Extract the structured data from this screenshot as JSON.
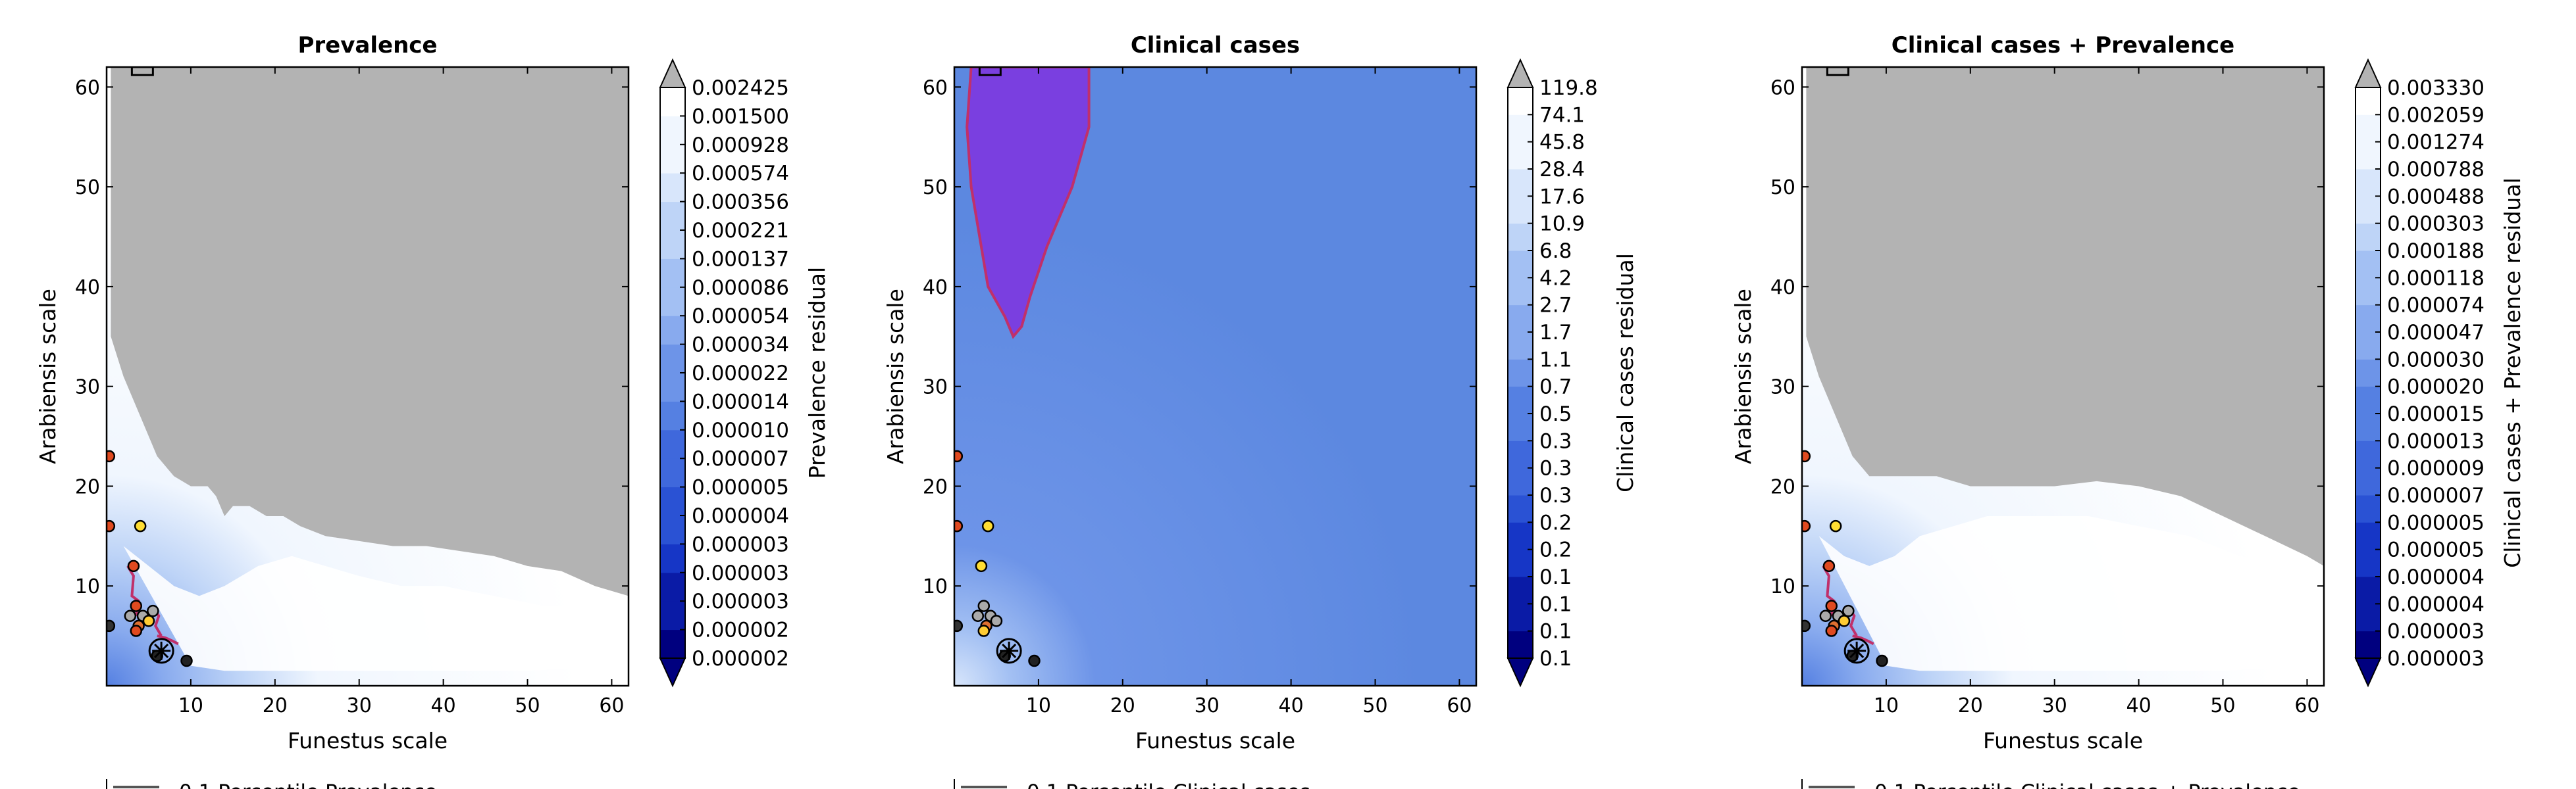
{
  "chart_data": [
    {
      "type": "heatmap",
      "title": "Prevalence",
      "xlabel": "Funestus scale",
      "ylabel": "Arabiensis scale",
      "xlim": [
        0,
        62
      ],
      "ylim": [
        0,
        62
      ],
      "x_ticks": [
        "10",
        "20",
        "30",
        "40",
        "50",
        "60"
      ],
      "y_ticks": [
        "10",
        "20",
        "30",
        "40",
        "50",
        "60"
      ],
      "colorbar_label": "Prevalence residual",
      "colorbar_ticks": [
        "0.002425",
        "0.001500",
        "0.000928",
        "0.000574",
        "0.000356",
        "0.000221",
        "0.000137",
        "0.000086",
        "0.000054",
        "0.000034",
        "0.000022",
        "0.000014",
        "0.000010",
        "0.000007",
        "0.000005",
        "0.000004",
        "0.000003",
        "0.000003",
        "0.000003",
        "0.000002",
        "0.000002"
      ],
      "legend_partial": "0.1 Percentile Prevalence",
      "grey_region_boundary": [
        [
          0.5,
          62
        ],
        [
          0.5,
          35
        ],
        [
          2,
          31
        ],
        [
          4,
          27
        ],
        [
          6,
          23
        ],
        [
          8,
          21
        ],
        [
          10,
          20
        ],
        [
          12,
          20
        ],
        [
          13,
          19
        ],
        [
          14,
          17
        ],
        [
          15,
          18
        ],
        [
          17,
          18
        ],
        [
          19,
          17
        ],
        [
          21,
          17
        ],
        [
          23,
          16
        ],
        [
          26,
          15
        ],
        [
          30,
          14.5
        ],
        [
          34,
          14
        ],
        [
          38,
          14
        ],
        [
          42,
          13.5
        ],
        [
          46,
          13
        ],
        [
          50,
          12
        ],
        [
          54,
          11.5
        ],
        [
          58,
          10
        ],
        [
          62,
          9
        ],
        [
          62,
          62
        ]
      ],
      "white_region_boundary": [
        [
          2,
          14
        ],
        [
          5,
          12
        ],
        [
          8,
          10
        ],
        [
          11,
          9
        ],
        [
          14,
          10
        ],
        [
          18,
          12
        ],
        [
          22,
          13
        ],
        [
          26,
          12
        ],
        [
          30,
          11
        ],
        [
          35,
          10
        ],
        [
          40,
          10
        ],
        [
          46,
          9
        ],
        [
          52,
          8
        ],
        [
          58,
          8
        ],
        [
          62,
          7
        ],
        [
          62,
          2
        ],
        [
          50,
          1.5
        ],
        [
          40,
          1.5
        ],
        [
          30,
          1.5
        ],
        [
          20,
          1.5
        ],
        [
          14,
          1.5
        ],
        [
          10,
          2
        ]
      ],
      "percentile_contours": [
        [
          [
            2.5,
            12
          ],
          [
            3.2,
            11
          ],
          [
            3,
            9
          ],
          [
            3.8,
            8.5
          ],
          [
            3.5,
            7
          ]
        ],
        [
          [
            5.5,
            8
          ],
          [
            6.2,
            7
          ],
          [
            5.8,
            6
          ],
          [
            6.5,
            5
          ]
        ],
        [
          [
            6,
            5
          ],
          [
            7,
            4.8
          ],
          [
            7.8,
            4.5
          ],
          [
            8.5,
            4.2
          ]
        ]
      ],
      "markers": [
        {
          "x": 0.3,
          "y": 23,
          "color": "#e04a20"
        },
        {
          "x": 0.3,
          "y": 16,
          "color": "#e04a20"
        },
        {
          "x": 0.3,
          "y": 6,
          "color": "#333333"
        },
        {
          "x": 4,
          "y": 16,
          "color": "#ffdd33"
        },
        {
          "x": 3.2,
          "y": 12,
          "color": "#e04a20"
        },
        {
          "x": 2.8,
          "y": 7,
          "color": "#aaaaaa"
        },
        {
          "x": 3.5,
          "y": 8,
          "color": "#e04a20"
        },
        {
          "x": 4.3,
          "y": 7,
          "color": "#aaaaaa"
        },
        {
          "x": 3.8,
          "y": 6,
          "color": "#e07030"
        },
        {
          "x": 5,
          "y": 6.5,
          "color": "#ffcc33"
        },
        {
          "x": 3.5,
          "y": 5.5,
          "color": "#e04a20"
        },
        {
          "x": 5.5,
          "y": 7.5,
          "color": "#aaaaaa"
        },
        {
          "x": 6,
          "y": 3,
          "color": "#222222"
        },
        {
          "x": 9.5,
          "y": 2.5,
          "color": "#222222"
        }
      ],
      "best_marker": {
        "x": 6.5,
        "y": 3.5
      },
      "frame_box": {
        "x0": 3,
        "x1": 5.5,
        "y0": 61.2,
        "y1": 62
      }
    },
    {
      "type": "heatmap",
      "title": "Clinical cases",
      "xlabel": "Funestus scale",
      "ylabel": "Arabiensis scale",
      "xlim": [
        0,
        62
      ],
      "ylim": [
        0,
        62
      ],
      "x_ticks": [
        "10",
        "20",
        "30",
        "40",
        "50",
        "60"
      ],
      "y_ticks": [
        "10",
        "20",
        "30",
        "40",
        "50",
        "60"
      ],
      "colorbar_label": "Clinical cases residual",
      "colorbar_ticks": [
        "119.8",
        "74.1",
        "45.8",
        "28.4",
        "17.6",
        "10.9",
        "6.8",
        "4.2",
        "2.7",
        "1.7",
        "1.1",
        "0.7",
        "0.5",
        "0.3",
        "0.3",
        "0.3",
        "0.2",
        "0.2",
        "0.1",
        "0.1",
        "0.1",
        "0.1"
      ],
      "legend_partial": "0.1 Percentile Clinical cases",
      "purple_region_boundary": [
        [
          2,
          62
        ],
        [
          16,
          62
        ],
        [
          16,
          56
        ],
        [
          14,
          50
        ],
        [
          11,
          44
        ],
        [
          9,
          39
        ],
        [
          8,
          36
        ],
        [
          7,
          35
        ],
        [
          6,
          37
        ],
        [
          4,
          40
        ],
        [
          3,
          45
        ],
        [
          2,
          50
        ],
        [
          1.5,
          56
        ]
      ],
      "percentile_contours": [
        [
          [
            2,
            62
          ],
          [
            16,
            62
          ],
          [
            16,
            56
          ],
          [
            14,
            50
          ],
          [
            11,
            44
          ],
          [
            9,
            39
          ],
          [
            8,
            36
          ],
          [
            7,
            35
          ],
          [
            6,
            37
          ],
          [
            4,
            40
          ],
          [
            3,
            45
          ],
          [
            2,
            50
          ],
          [
            1.5,
            56
          ],
          [
            2,
            62
          ]
        ]
      ],
      "markers": [
        {
          "x": 0.3,
          "y": 23,
          "color": "#e04a20"
        },
        {
          "x": 0.3,
          "y": 16,
          "color": "#e04a20"
        },
        {
          "x": 0.3,
          "y": 6,
          "color": "#333333"
        },
        {
          "x": 4,
          "y": 16,
          "color": "#ffdd33"
        },
        {
          "x": 3.2,
          "y": 12,
          "color": "#ffdd33"
        },
        {
          "x": 2.8,
          "y": 7,
          "color": "#aaaaaa"
        },
        {
          "x": 3.5,
          "y": 8,
          "color": "#aaaaaa"
        },
        {
          "x": 4.3,
          "y": 7,
          "color": "#aaaaaa"
        },
        {
          "x": 3.8,
          "y": 6,
          "color": "#e07030"
        },
        {
          "x": 5,
          "y": 6.5,
          "color": "#aaaaaa"
        },
        {
          "x": 3.5,
          "y": 5.5,
          "color": "#ffcc33"
        },
        {
          "x": 6,
          "y": 3,
          "color": "#222222"
        },
        {
          "x": 9.5,
          "y": 2.5,
          "color": "#222222"
        }
      ],
      "best_marker": {
        "x": 6.5,
        "y": 3.5
      },
      "frame_box": {
        "x0": 3,
        "x1": 5.5,
        "y0": 61.2,
        "y1": 62
      }
    },
    {
      "type": "heatmap",
      "title": "Clinical cases + Prevalence",
      "xlabel": "Funestus scale",
      "ylabel": "Arabiensis scale",
      "xlim": [
        0,
        62
      ],
      "ylim": [
        0,
        62
      ],
      "x_ticks": [
        "10",
        "20",
        "30",
        "40",
        "50",
        "60"
      ],
      "y_ticks": [
        "10",
        "20",
        "30",
        "40",
        "50",
        "60"
      ],
      "colorbar_label": "Clinical cases + Prevalence residual",
      "colorbar_ticks": [
        "0.003330",
        "0.002059",
        "0.001274",
        "0.000788",
        "0.000488",
        "0.000303",
        "0.000188",
        "0.000118",
        "0.000074",
        "0.000047",
        "0.000030",
        "0.000020",
        "0.000015",
        "0.000013",
        "0.000009",
        "0.000007",
        "0.000005",
        "0.000005",
        "0.000004",
        "0.000004",
        "0.000003",
        "0.000003"
      ],
      "legend_partial": "0.1 Percentile Clinical cases + Prevalence",
      "grey_region_boundary": [
        [
          0.5,
          62
        ],
        [
          0.5,
          35
        ],
        [
          2,
          31
        ],
        [
          4,
          27
        ],
        [
          6,
          23
        ],
        [
          8,
          21
        ],
        [
          10,
          21
        ],
        [
          13,
          21
        ],
        [
          16,
          21
        ],
        [
          20,
          20
        ],
        [
          25,
          20
        ],
        [
          30,
          20
        ],
        [
          35,
          20.5
        ],
        [
          40,
          20
        ],
        [
          45,
          19
        ],
        [
          50,
          17
        ],
        [
          55,
          15
        ],
        [
          60,
          13
        ],
        [
          62,
          12
        ],
        [
          62,
          62
        ]
      ],
      "white_region_boundary": [
        [
          2,
          15
        ],
        [
          5,
          13
        ],
        [
          8,
          12
        ],
        [
          11,
          13
        ],
        [
          14,
          15
        ],
        [
          18,
          16
        ],
        [
          22,
          17
        ],
        [
          28,
          17
        ],
        [
          34,
          17
        ],
        [
          40,
          16
        ],
        [
          46,
          15
        ],
        [
          52,
          13
        ],
        [
          58,
          12
        ],
        [
          62,
          11
        ],
        [
          62,
          2
        ],
        [
          50,
          1.5
        ],
        [
          40,
          1.5
        ],
        [
          30,
          1.5
        ],
        [
          20,
          1.5
        ],
        [
          14,
          1.5
        ],
        [
          10,
          2
        ]
      ],
      "percentile_contours": [
        [
          [
            2.5,
            12
          ],
          [
            3.2,
            11
          ],
          [
            3,
            9
          ],
          [
            3.8,
            8.5
          ],
          [
            3.5,
            7
          ]
        ],
        [
          [
            5.5,
            8
          ],
          [
            6.2,
            7
          ],
          [
            5.8,
            6
          ],
          [
            6.5,
            5
          ]
        ],
        [
          [
            6,
            5
          ],
          [
            7,
            4.8
          ],
          [
            7.8,
            4.5
          ],
          [
            8.5,
            4.2
          ]
        ]
      ],
      "markers": [
        {
          "x": 0.3,
          "y": 23,
          "color": "#e04a20"
        },
        {
          "x": 0.3,
          "y": 16,
          "color": "#e04a20"
        },
        {
          "x": 0.3,
          "y": 6,
          "color": "#333333"
        },
        {
          "x": 4,
          "y": 16,
          "color": "#ffdd33"
        },
        {
          "x": 3.2,
          "y": 12,
          "color": "#e04a20"
        },
        {
          "x": 2.8,
          "y": 7,
          "color": "#aaaaaa"
        },
        {
          "x": 3.5,
          "y": 8,
          "color": "#e04a20"
        },
        {
          "x": 4.3,
          "y": 7,
          "color": "#aaaaaa"
        },
        {
          "x": 3.8,
          "y": 6,
          "color": "#e07030"
        },
        {
          "x": 5,
          "y": 6.5,
          "color": "#ffcc33"
        },
        {
          "x": 3.5,
          "y": 5.5,
          "color": "#e04a20"
        },
        {
          "x": 5.5,
          "y": 7.5,
          "color": "#aaaaaa"
        },
        {
          "x": 6,
          "y": 3,
          "color": "#222222"
        },
        {
          "x": 9.5,
          "y": 2.5,
          "color": "#222222"
        }
      ],
      "best_marker": {
        "x": 6.5,
        "y": 3.5
      },
      "frame_box": {
        "x0": 3,
        "x1": 5.5,
        "y0": 61.2,
        "y1": 62
      }
    }
  ],
  "colors": {
    "grey_overflow": "#b3b3b3",
    "purple_region": "#7a3fe0",
    "purple_outline": "#c0306a",
    "base_blue": "#5c88e0",
    "colormap": [
      "#00007f",
      "#0a1ba6",
      "#1636c6",
      "#2a52d4",
      "#3f68dc",
      "#5580e2",
      "#6d94e8",
      "#88aaee",
      "#a3c0f3",
      "#bed4f7",
      "#d8e6fb",
      "#f0f6fe",
      "#ffffff"
    ]
  }
}
